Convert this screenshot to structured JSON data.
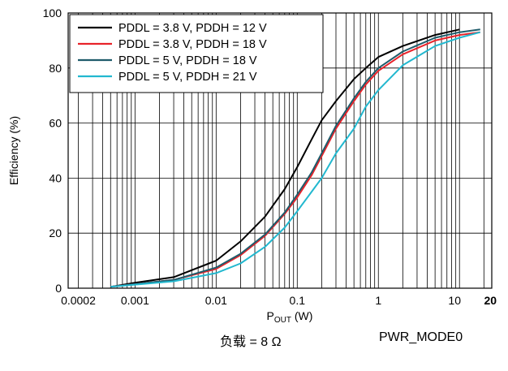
{
  "chart_data": {
    "type": "line",
    "x_scale": "log",
    "xlabel": "P",
    "xlabel_sub": "OUT",
    "xlabel_unit": " (W)",
    "ylabel": "Efficiency (%)",
    "xlim": [
      0.00015,
      25
    ],
    "ylim": [
      0,
      100
    ],
    "x_ticks": [
      {
        "value": 0.0002,
        "label": "0.0002",
        "bold": false
      },
      {
        "value": 0.001,
        "label": "0.001",
        "bold": false
      },
      {
        "value": 0.01,
        "label": "0.01",
        "bold": false
      },
      {
        "value": 0.1,
        "label": "0.1",
        "bold": false
      },
      {
        "value": 1,
        "label": "1",
        "bold": false
      },
      {
        "value": 10,
        "label": "10",
        "bold": false
      },
      {
        "value": 20,
        "label": "20",
        "bold": true
      }
    ],
    "y_ticks": [
      0,
      20,
      40,
      60,
      80,
      100
    ],
    "grid": {
      "x_minor": true,
      "y_major": true
    },
    "legend_position": "top-left",
    "series": [
      {
        "name": "PDDL = 3.8 V, PDDH = 12 V",
        "color": "#000000",
        "x": [
          0.0005,
          0.001,
          0.003,
          0.01,
          0.02,
          0.04,
          0.07,
          0.1,
          0.15,
          0.2,
          0.3,
          0.5,
          0.7,
          1,
          2,
          5,
          10
        ],
        "y": [
          0.5,
          2,
          4,
          10,
          17,
          26,
          36,
          44,
          54,
          61,
          68,
          76,
          80,
          84,
          88,
          92,
          94
        ]
      },
      {
        "name": "PDDL = 3.8 V, PDDH = 18 V",
        "color": "#e8232a",
        "x": [
          0.0005,
          0.001,
          0.003,
          0.01,
          0.02,
          0.04,
          0.07,
          0.1,
          0.15,
          0.2,
          0.3,
          0.5,
          0.7,
          1,
          2,
          5,
          10,
          18
        ],
        "y": [
          0.5,
          1.5,
          3,
          7,
          12,
          19,
          27,
          33,
          41,
          48,
          58,
          68,
          74,
          79,
          85,
          90,
          92,
          93
        ]
      },
      {
        "name": "PDDL = 5 V, PDDH = 18 V",
        "color": "#1f5c6b",
        "x": [
          0.0005,
          0.001,
          0.003,
          0.01,
          0.02,
          0.04,
          0.07,
          0.1,
          0.15,
          0.2,
          0.3,
          0.5,
          0.7,
          1,
          2,
          5,
          10,
          18
        ],
        "y": [
          0.5,
          1.5,
          3,
          7.5,
          12.5,
          19.5,
          27.5,
          34,
          42,
          49,
          59,
          69,
          75,
          80,
          86,
          91,
          93,
          94
        ]
      },
      {
        "name": "PDDL = 5 V, PDDH = 21 V",
        "color": "#22b8cf",
        "x": [
          0.0005,
          0.001,
          0.003,
          0.01,
          0.02,
          0.04,
          0.07,
          0.1,
          0.15,
          0.2,
          0.3,
          0.5,
          0.7,
          1,
          2,
          5,
          10,
          18
        ],
        "y": [
          0.5,
          1.3,
          2.5,
          5.5,
          9,
          15,
          22,
          28,
          35,
          40,
          49,
          58,
          66,
          72,
          81,
          88,
          91,
          93
        ]
      }
    ]
  },
  "footer": {
    "load_text": "负载 = 8 Ω",
    "mode_text": "PWR_MODE0"
  }
}
